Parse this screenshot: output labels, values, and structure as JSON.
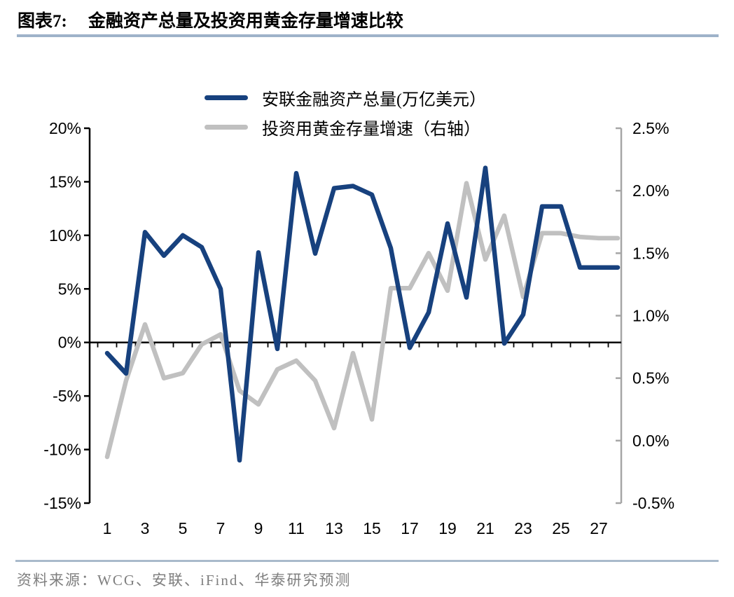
{
  "title": {
    "prefix": "图表7:",
    "text": "金融资产总量及投资用黄金存量增速比较"
  },
  "source": {
    "text": "资料来源：WCG、安联、iFind、华泰研究预测"
  },
  "colors": {
    "assets_blue": "#17417E",
    "gold_gray": "#C0C0C0",
    "left_axis": "#000000",
    "right_axis": "#A6A6A6",
    "tick_label": "#000000",
    "title_rule": "#9EB2C9",
    "source_rule": "#A9BACB",
    "source_text": "#7F7F7F"
  },
  "chart_data": {
    "type": "line",
    "x": [
      1,
      2,
      3,
      4,
      5,
      6,
      7,
      8,
      9,
      10,
      11,
      12,
      13,
      14,
      15,
      16,
      17,
      18,
      19,
      20,
      21,
      22,
      23,
      24,
      25,
      26,
      27,
      28
    ],
    "x_tick_labels": [
      "1",
      "3",
      "5",
      "7",
      "9",
      "11",
      "13",
      "15",
      "17",
      "19",
      "21",
      "23",
      "25",
      "27"
    ],
    "series": [
      {
        "name": "安联金融资产总量(万亿美元）",
        "axis": "left",
        "color": "#17417E",
        "values": [
          -1.0,
          -2.9,
          10.3,
          8.1,
          10.0,
          8.9,
          5.0,
          -11.0,
          8.4,
          -0.6,
          15.8,
          8.3,
          14.4,
          14.6,
          13.8,
          8.8,
          -0.5,
          2.8,
          11.1,
          4.2,
          16.3,
          -0.1,
          2.6,
          12.7,
          12.7,
          7.0,
          7.0,
          7.0
        ]
      },
      {
        "name": "投资用黄金存量增速（右轴）",
        "axis": "right",
        "color": "#C0C0C0",
        "values": [
          -0.13,
          0.48,
          0.93,
          0.5,
          0.54,
          0.77,
          0.85,
          0.4,
          0.29,
          0.57,
          0.64,
          0.48,
          0.1,
          0.7,
          0.17,
          1.22,
          1.22,
          1.5,
          1.2,
          2.06,
          1.45,
          1.8,
          1.15,
          1.66,
          1.66,
          1.63,
          1.62,
          1.62
        ]
      }
    ],
    "left_axis": {
      "min": -15,
      "max": 20,
      "step": 5,
      "ticks": [
        {
          "label": "20%",
          "value": 20
        },
        {
          "label": "15%",
          "value": 15
        },
        {
          "label": "10%",
          "value": 10
        },
        {
          "label": "5%",
          "value": 5
        },
        {
          "label": "0%",
          "value": 0
        },
        {
          "label": "-5%",
          "value": -5
        },
        {
          "label": "-10%",
          "value": -10
        },
        {
          "label": "-15%",
          "value": -15
        }
      ]
    },
    "right_axis": {
      "min": -0.5,
      "max": 2.5,
      "step": 0.5,
      "ticks": [
        {
          "label": "2.5%",
          "value": 2.5
        },
        {
          "label": "2.0%",
          "value": 2.0
        },
        {
          "label": "1.5%",
          "value": 1.5
        },
        {
          "label": "1.0%",
          "value": 1.0
        },
        {
          "label": "0.5%",
          "value": 0.5
        },
        {
          "label": "0.0%",
          "value": 0.0
        },
        {
          "label": "-0.5%",
          "value": -0.5
        }
      ]
    },
    "legend_position": "top-center",
    "grid": false
  }
}
